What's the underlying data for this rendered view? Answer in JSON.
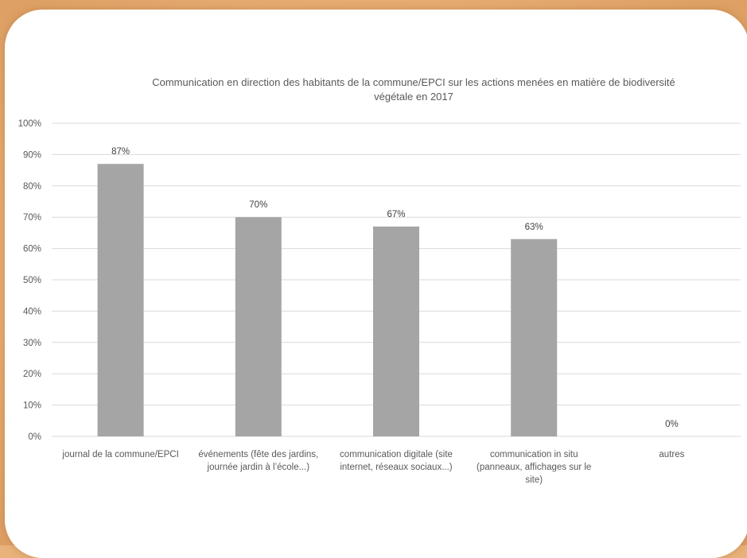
{
  "chart_data": {
    "type": "bar",
    "title": "Communication en direction des habitants de la commune/EPCI sur les actions menées en matière de biodiversité\nvégétale en 2017",
    "categories": [
      [
        "journal de la commune/EPCI"
      ],
      [
        "événements (fête des jardins,",
        "journée jardin à l’école...)"
      ],
      [
        "communication digitale (site",
        "internet, réseaux sociaux...)"
      ],
      [
        "communication in situ",
        "(panneaux, affichages sur le",
        "site)"
      ],
      [
        "autres"
      ]
    ],
    "values": [
      87,
      70,
      67,
      63,
      0
    ],
    "data_labels": [
      "87%",
      "70%",
      "67%",
      "63%",
      "0%"
    ],
    "ylim": [
      0,
      100
    ],
    "yticks": [
      "0%",
      "10%",
      "20%",
      "30%",
      "40%",
      "50%",
      "60%",
      "70%",
      "80%",
      "90%",
      "100%"
    ],
    "grid": true,
    "bar_color": "#a5a5a5",
    "grid_color": "#d9d9d9",
    "xlabel": "",
    "ylabel": ""
  }
}
